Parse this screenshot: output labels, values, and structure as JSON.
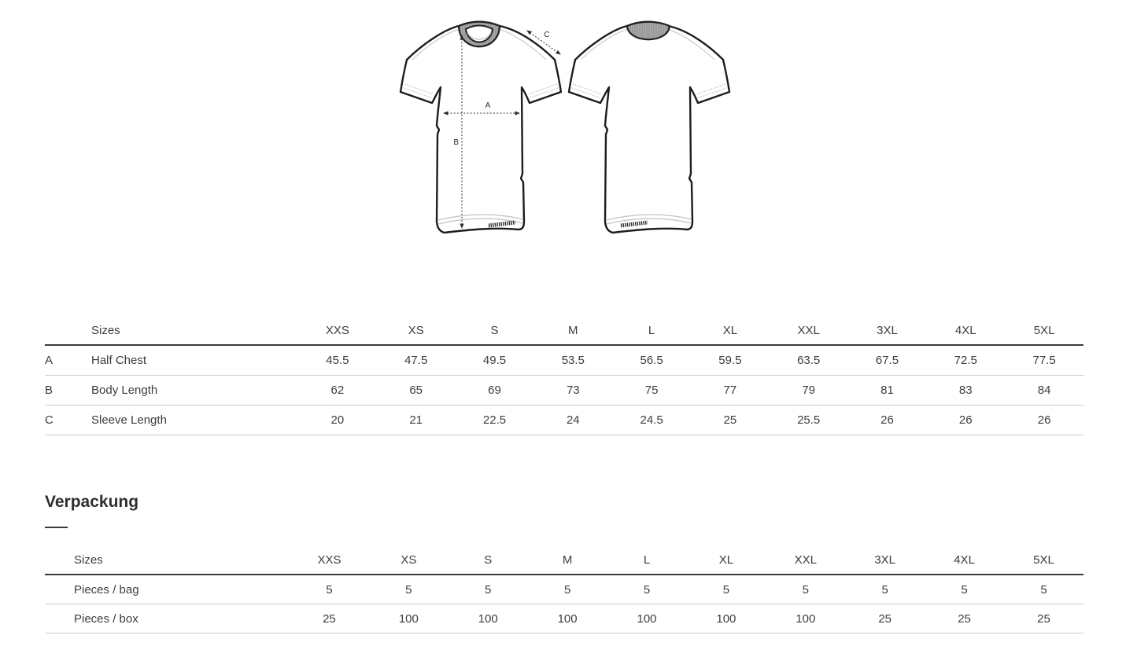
{
  "diagram": {
    "labels": {
      "a": "A",
      "b": "B",
      "c": "C"
    }
  },
  "size_table": {
    "header_label": "Sizes",
    "sizes": [
      "XXS",
      "XS",
      "S",
      "M",
      "L",
      "XL",
      "XXL",
      "3XL",
      "4XL",
      "5XL"
    ],
    "rows": [
      {
        "letter": "A",
        "label": "Half Chest",
        "values": [
          "45.5",
          "47.5",
          "49.5",
          "53.5",
          "56.5",
          "59.5",
          "63.5",
          "67.5",
          "72.5",
          "77.5"
        ]
      },
      {
        "letter": "B",
        "label": "Body Length",
        "values": [
          "62",
          "65",
          "69",
          "73",
          "75",
          "77",
          "79",
          "81",
          "83",
          "84"
        ]
      },
      {
        "letter": "C",
        "label": "Sleeve Length",
        "values": [
          "20",
          "21",
          "22.5",
          "24",
          "24.5",
          "25",
          "25.5",
          "26",
          "26",
          "26"
        ]
      }
    ]
  },
  "packaging": {
    "title": "Verpackung",
    "header_label": "Sizes",
    "sizes": [
      "XXS",
      "XS",
      "S",
      "M",
      "L",
      "XL",
      "XXL",
      "3XL",
      "4XL",
      "5XL"
    ],
    "rows": [
      {
        "label": "Pieces / bag",
        "values": [
          "5",
          "5",
          "5",
          "5",
          "5",
          "5",
          "5",
          "5",
          "5",
          "5"
        ]
      },
      {
        "label": "Pieces / box",
        "values": [
          "25",
          "100",
          "100",
          "100",
          "100",
          "100",
          "100",
          "25",
          "25",
          "25"
        ]
      }
    ]
  }
}
